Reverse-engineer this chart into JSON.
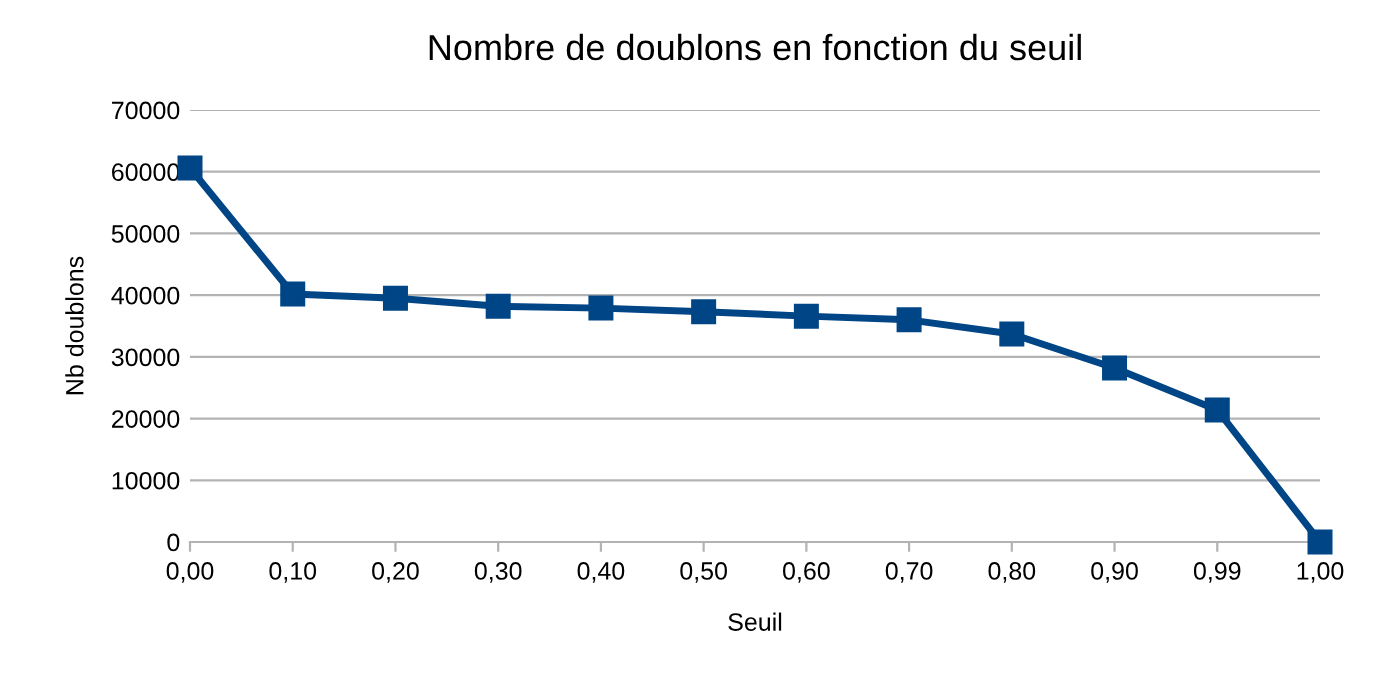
{
  "chart_data": {
    "type": "line",
    "title": "Nombre de doublons en fonction du seuil",
    "xlabel": "Seuil",
    "ylabel": "Nb doublons",
    "categories": [
      "0,00",
      "0,10",
      "0,20",
      "0,30",
      "0,40",
      "0,50",
      "0,60",
      "0,70",
      "0,80",
      "0,90",
      "0,99",
      "1,00"
    ],
    "series": [
      {
        "color": "#004586",
        "values": [
          60600,
          40200,
          39500,
          38200,
          37900,
          37300,
          36600,
          36000,
          33700,
          28200,
          21400,
          0
        ]
      }
    ],
    "ylim": [
      0,
      70000
    ],
    "yticks": [
      0,
      10000,
      20000,
      30000,
      40000,
      50000,
      60000,
      70000
    ],
    "grid": "y",
    "marker": "square",
    "line_style": "solid",
    "legend": false
  }
}
